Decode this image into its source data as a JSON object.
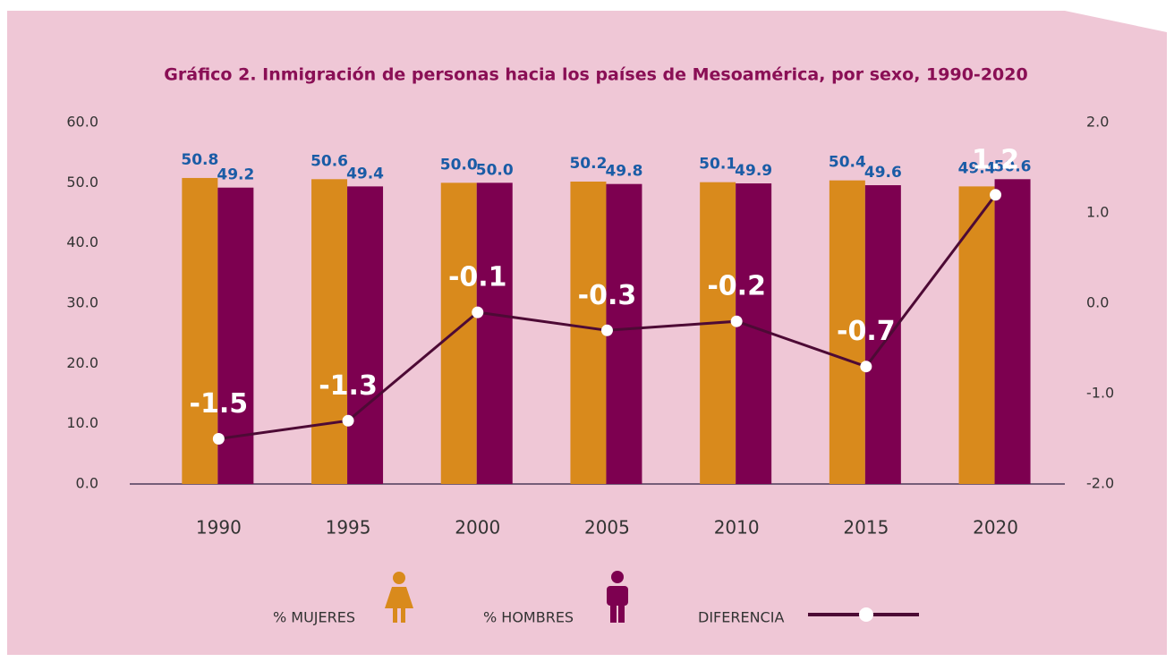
{
  "chart_data": {
    "type": "bar",
    "title": "Gráfico 2. Inmigración de personas hacia los países de Mesoamérica, por sexo, 1990-2020",
    "categories": [
      "1990",
      "1995",
      "2000",
      "2005",
      "2010",
      "2015",
      "2020"
    ],
    "series": [
      {
        "name": "% MUJERES",
        "color": "#d98a1c",
        "values": [
          50.8,
          50.6,
          50.0,
          50.2,
          50.1,
          50.4,
          49.4
        ],
        "value_labels": [
          "50.8",
          "50.6",
          "50.0",
          "50.2",
          "50.1",
          "50.4",
          "49.4"
        ]
      },
      {
        "name": "% HOMBRES",
        "color": "#7d0050",
        "values": [
          49.2,
          49.4,
          50.0,
          49.8,
          49.9,
          49.6,
          50.6
        ],
        "value_labels": [
          "49.2",
          "49.4",
          "50.0",
          "49.8",
          "49.9",
          "49.6",
          "50.6"
        ]
      },
      {
        "name": "DIFERENCIA",
        "color": "#4d0a35",
        "type": "line",
        "axis": "y2",
        "values": [
          -1.5,
          -1.3,
          -0.1,
          -0.3,
          -0.2,
          -0.7,
          1.2
        ]
      }
    ],
    "ylim": [
      0,
      60
    ],
    "yticks": [
      {
        "value": 0,
        "label": "0.0"
      },
      {
        "value": 10,
        "label": "10.0"
      },
      {
        "value": 20,
        "label": "20.0"
      },
      {
        "value": 30,
        "label": "30.0"
      },
      {
        "value": 40,
        "label": "40.0"
      },
      {
        "value": 50,
        "label": "50.0"
      },
      {
        "value": 60,
        "label": "60.0"
      }
    ],
    "y2lim": [
      -2,
      2
    ],
    "y2ticks": [
      {
        "value": -2,
        "label": "-2.0"
      },
      {
        "value": -1,
        "label": "-1.0"
      },
      {
        "value": 0,
        "label": "0.0"
      },
      {
        "value": 1,
        "label": "1.0"
      },
      {
        "value": 2,
        "label": "2.0"
      }
    ],
    "value_label_color": "#1a5ca6"
  }
}
